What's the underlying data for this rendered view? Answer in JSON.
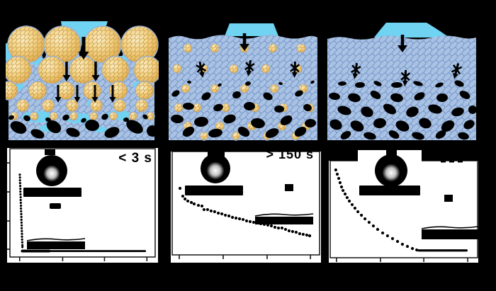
{
  "figure": {
    "background": "#000000",
    "palette": {
      "water": "#6fd3f1",
      "matrix": "#a9c2e4",
      "mesh_line": "#7293c5",
      "particle_fill": "#f0cd7e",
      "particle_line": "#c09038",
      "ink": "#000000",
      "plot_background": "#ffffff"
    },
    "schematic_row": {
      "panel_count": 3
    }
  },
  "chart_data": [
    {
      "type": "scatter",
      "title": "",
      "xlabel": "",
      "ylabel": "",
      "annotation": "< 3 s",
      "axis_note": "tick labels not visible in image; point coords normalized (x: fraction along x-axis, y: fraction down from top of frame)",
      "x_ticks": [
        0.067,
        0.363,
        0.651,
        0.943
      ],
      "y_ticks": [
        0.131,
        0.399,
        0.667,
        0.928
      ],
      "marker_r": 1.6,
      "points": [
        [
          0.068,
          0.24
        ],
        [
          0.069,
          0.266
        ],
        [
          0.069,
          0.292
        ],
        [
          0.07,
          0.318
        ],
        [
          0.071,
          0.344
        ],
        [
          0.072,
          0.37
        ],
        [
          0.072,
          0.396
        ],
        [
          0.073,
          0.422
        ],
        [
          0.074,
          0.448
        ],
        [
          0.074,
          0.474
        ],
        [
          0.075,
          0.5
        ],
        [
          0.076,
          0.526
        ],
        [
          0.076,
          0.552
        ],
        [
          0.077,
          0.578
        ],
        [
          0.078,
          0.604
        ],
        [
          0.079,
          0.63
        ],
        [
          0.079,
          0.656
        ],
        [
          0.08,
          0.682
        ],
        [
          0.081,
          0.708
        ],
        [
          0.081,
          0.734
        ],
        [
          0.082,
          0.76
        ],
        [
          0.083,
          0.786
        ],
        [
          0.083,
          0.812
        ],
        [
          0.084,
          0.838
        ],
        [
          0.085,
          0.864
        ],
        [
          0.086,
          0.89
        ],
        [
          0.086,
          0.908
        ]
      ],
      "runs": [
        {
          "fy": 0.945,
          "fx0": 0.085,
          "fx1": 0.27,
          "count": 30,
          "r": 1.9
        },
        {
          "fy": 0.945,
          "fx0": 0.275,
          "fx1": 0.93,
          "count": 78,
          "r": 1.4
        }
      ]
    },
    {
      "type": "scatter",
      "title": "",
      "xlabel": "",
      "ylabel": "",
      "annotation": "> 150 s",
      "axis_note": "tick labels not visible in image; point coords normalized",
      "x_ticks": [
        0.048,
        0.346,
        0.644,
        0.938
      ],
      "y_ticks": [],
      "marker_r": 2.1,
      "points": [
        [
          0.053,
          0.356
        ],
        [
          0.072,
          0.432
        ],
        [
          0.087,
          0.459
        ],
        [
          0.106,
          0.479
        ],
        [
          0.13,
          0.493
        ],
        [
          0.149,
          0.507
        ],
        [
          0.178,
          0.521
        ],
        [
          0.202,
          0.527
        ],
        [
          0.216,
          0.562
        ],
        [
          0.24,
          0.562
        ],
        [
          0.264,
          0.575
        ],
        [
          0.288,
          0.582
        ],
        [
          0.313,
          0.596
        ],
        [
          0.337,
          0.603
        ],
        [
          0.361,
          0.616
        ],
        [
          0.385,
          0.623
        ],
        [
          0.409,
          0.637
        ],
        [
          0.433,
          0.644
        ],
        [
          0.457,
          0.651
        ],
        [
          0.481,
          0.658
        ],
        [
          0.505,
          0.671
        ],
        [
          0.529,
          0.678
        ],
        [
          0.553,
          0.685
        ],
        [
          0.577,
          0.692
        ],
        [
          0.601,
          0.699
        ],
        [
          0.625,
          0.705
        ],
        [
          0.649,
          0.712
        ],
        [
          0.673,
          0.719
        ],
        [
          0.697,
          0.733
        ],
        [
          0.721,
          0.74
        ],
        [
          0.745,
          0.74
        ],
        [
          0.769,
          0.753
        ],
        [
          0.793,
          0.767
        ],
        [
          0.817,
          0.774
        ],
        [
          0.841,
          0.781
        ],
        [
          0.865,
          0.795
        ],
        [
          0.889,
          0.801
        ],
        [
          0.913,
          0.808
        ],
        [
          0.933,
          0.815
        ]
      ],
      "runs": []
    },
    {
      "type": "scatter",
      "title": "",
      "xlabel": "",
      "ylabel": "",
      "annotation": "",
      "axis_note": "annotation text clipped at top edge of panel; tick labels not visible; point coords normalized",
      "x_ticks": [
        0.043,
        0.341,
        0.635,
        0.933
      ],
      "y_ticks": [],
      "marker_r": 2.1,
      "points": [
        [
          0.038,
          0.095
        ],
        [
          0.048,
          0.139
        ],
        [
          0.058,
          0.182
        ],
        [
          0.067,
          0.226
        ],
        [
          0.077,
          0.27
        ],
        [
          0.087,
          0.307
        ],
        [
          0.101,
          0.343
        ],
        [
          0.115,
          0.38
        ],
        [
          0.13,
          0.416
        ],
        [
          0.149,
          0.453
        ],
        [
          0.168,
          0.489
        ],
        [
          0.188,
          0.526
        ],
        [
          0.212,
          0.562
        ],
        [
          0.236,
          0.599
        ],
        [
          0.264,
          0.635
        ],
        [
          0.293,
          0.672
        ],
        [
          0.322,
          0.708
        ],
        [
          0.356,
          0.745
        ],
        [
          0.389,
          0.774
        ],
        [
          0.423,
          0.803
        ],
        [
          0.457,
          0.832
        ],
        [
          0.49,
          0.861
        ],
        [
          0.524,
          0.883
        ],
        [
          0.558,
          0.905
        ],
        [
          0.587,
          0.92
        ]
      ],
      "runs": [
        {
          "fy": 0.925,
          "fx0": 0.6,
          "fx1": 0.925,
          "count": 50,
          "r": 1.6
        }
      ]
    }
  ]
}
